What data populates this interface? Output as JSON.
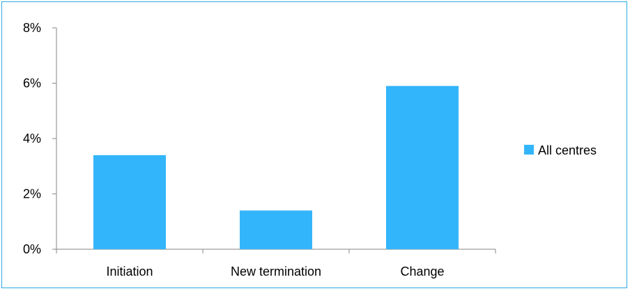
{
  "chart_data": {
    "type": "bar",
    "categories": [
      "Initiation",
      "New termination",
      "Change"
    ],
    "series": [
      {
        "name": "All centres",
        "values": [
          3.4,
          1.4,
          5.9
        ]
      }
    ],
    "y_ticks": [
      "0%",
      "2%",
      "4%",
      "6%",
      "8%"
    ],
    "y_tick_values": [
      0,
      2,
      4,
      6,
      8
    ],
    "ylim": [
      0,
      8
    ],
    "ylabel_unit": "%",
    "grid": false,
    "legend_position": "right",
    "bar_color": "#33b5fb",
    "frame_color": "#29a9e1"
  }
}
